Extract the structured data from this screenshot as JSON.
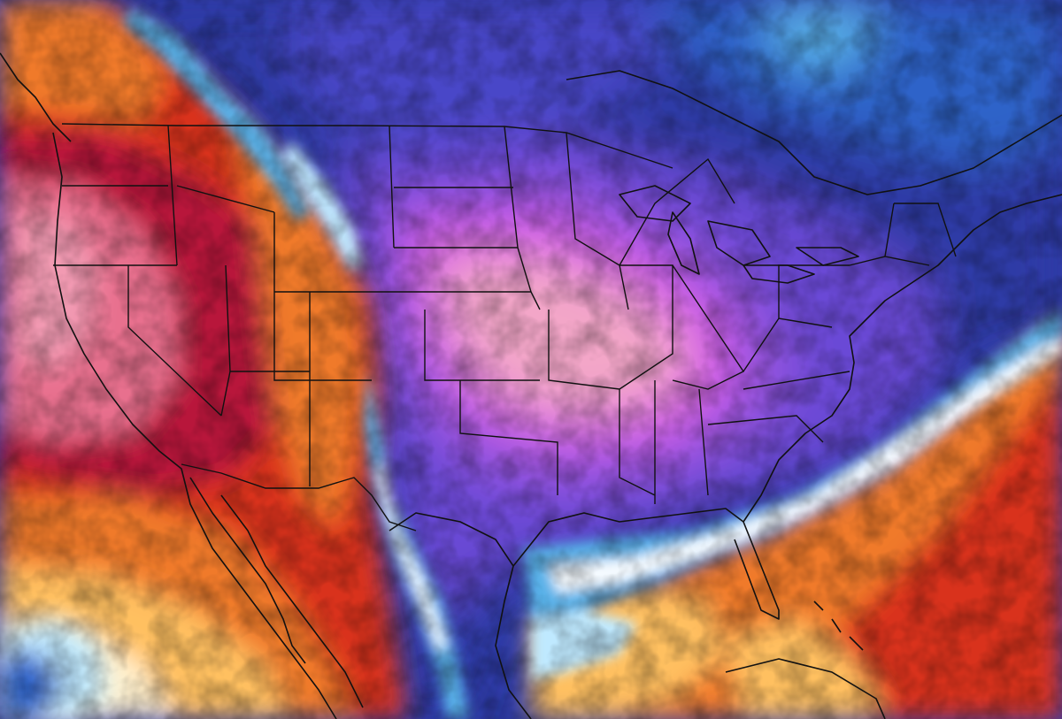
{
  "map": {
    "kind": "temperature-anomaly-map",
    "region": "North America",
    "labels_shown": false,
    "palette": {
      "warm_deep": "#b8183a",
      "warm_red": "#d9331f",
      "warm_orange": "#f07a2a",
      "warm_amber": "#ffc060",
      "warm_cream": "#fff1cf",
      "warm_pink": "#e8708e",
      "warm_rose": "#f29ab2",
      "cold_pink": "#f3a6c8",
      "cold_magenta": "#d75ce6",
      "cold_violet": "#9655e0",
      "cold_purple": "#6a48d6",
      "cold_indigo": "#4a46c8",
      "cold_navy": "#2d3aa6",
      "cold_blue": "#2f63c9",
      "cold_sky": "#58b1e8",
      "cold_cyan": "#bfe9ff",
      "front_white": "#f6fbff",
      "border_line": "#111111"
    },
    "layers": [
      "temperature-field",
      "cold-air-mass",
      "warm-air-west",
      "warm-air-atlantic",
      "coastlines",
      "state-borders"
    ]
  }
}
